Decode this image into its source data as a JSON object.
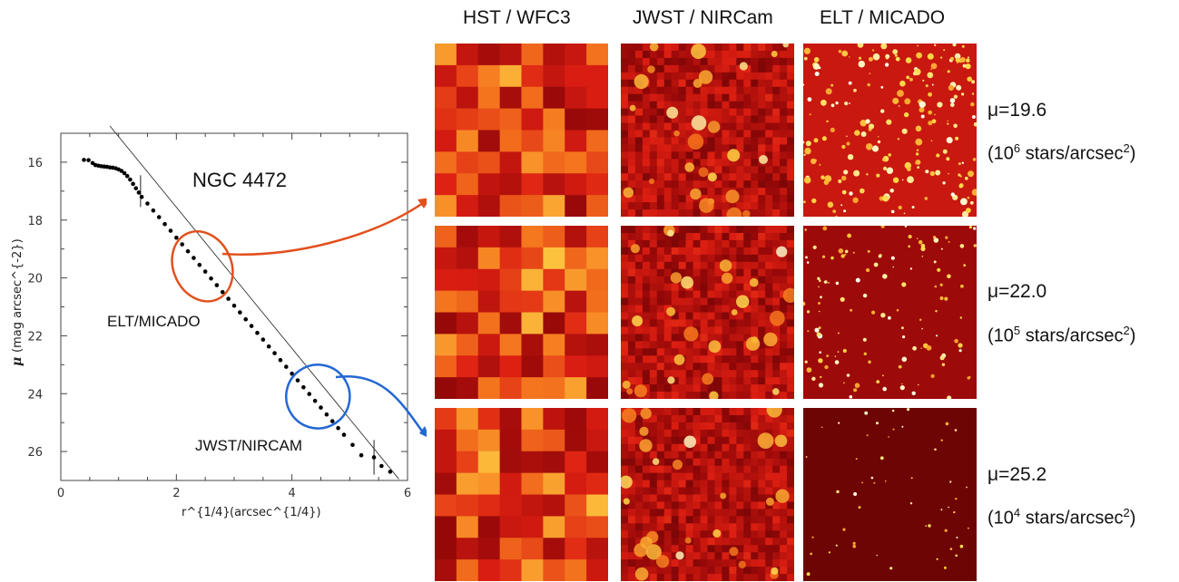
{
  "chart_data": {
    "type": "scatter",
    "title": "NGC 4472",
    "xlabel": "r^{1/4}",
    "xlabel_unit": "(arcsec^{1/4})",
    "ylabel": "μ",
    "ylabel_unit": "(mag arcsec^{-2})",
    "xlim": [
      0,
      6
    ],
    "ylim": [
      27,
      15
    ],
    "x_ticks": [
      "0",
      "2",
      "4",
      "6"
    ],
    "y_ticks": [
      "16",
      "18",
      "20",
      "22",
      "24",
      "26"
    ],
    "series": [
      {
        "points": [
          [
            0.4,
            15.92
          ],
          [
            0.48,
            15.93
          ],
          [
            0.55,
            16.03
          ],
          [
            0.6,
            16.1
          ],
          [
            0.65,
            16.12
          ],
          [
            0.7,
            16.14
          ],
          [
            0.75,
            16.15
          ],
          [
            0.8,
            16.16
          ],
          [
            0.85,
            16.18
          ],
          [
            0.9,
            16.19
          ],
          [
            0.95,
            16.21
          ],
          [
            1.0,
            16.25
          ],
          [
            1.05,
            16.3
          ],
          [
            1.1,
            16.38
          ],
          [
            1.15,
            16.48
          ],
          [
            1.2,
            16.6
          ],
          [
            1.25,
            16.75
          ],
          [
            1.3,
            16.9
          ],
          [
            1.35,
            17.05
          ],
          [
            1.4,
            17.2
          ],
          [
            1.5,
            17.43
          ],
          [
            1.6,
            17.67
          ],
          [
            1.7,
            17.9
          ],
          [
            1.8,
            18.14
          ],
          [
            1.9,
            18.37
          ],
          [
            2.0,
            18.61
          ],
          [
            2.1,
            18.84
          ],
          [
            2.2,
            19.08
          ],
          [
            2.3,
            19.31
          ],
          [
            2.4,
            19.55
          ],
          [
            2.5,
            19.78
          ],
          [
            2.6,
            20.02
          ],
          [
            2.7,
            20.25
          ],
          [
            2.8,
            20.49
          ],
          [
            2.9,
            20.72
          ],
          [
            3.0,
            20.96
          ],
          [
            3.1,
            21.19
          ],
          [
            3.2,
            21.43
          ],
          [
            3.3,
            21.66
          ],
          [
            3.4,
            21.9
          ],
          [
            3.5,
            22.13
          ],
          [
            3.6,
            22.37
          ],
          [
            3.7,
            22.6
          ],
          [
            3.8,
            22.84
          ],
          [
            3.9,
            23.07
          ],
          [
            4.0,
            23.31
          ],
          [
            4.1,
            23.54
          ],
          [
            4.2,
            23.78
          ],
          [
            4.3,
            24.01
          ],
          [
            4.4,
            24.25
          ],
          [
            4.5,
            24.48
          ],
          [
            4.6,
            24.72
          ],
          [
            4.7,
            24.95
          ],
          [
            4.8,
            25.19
          ],
          [
            4.9,
            25.42
          ],
          [
            5.05,
            25.77
          ],
          [
            5.2,
            26.13
          ],
          [
            5.42,
            26.2
          ],
          [
            5.55,
            26.5
          ],
          [
            5.7,
            26.7
          ]
        ]
      }
    ],
    "fit_line": {
      "x": [
        0.85,
        5.85
      ],
      "y": [
        14.75,
        26.95
      ]
    },
    "error_bars": [
      {
        "x": 1.38,
        "y": 17.0,
        "dy": 0.55
      },
      {
        "x": 5.42,
        "y": 26.2,
        "dy": 0.6
      }
    ],
    "ellipses": [
      {
        "label": "ELT/MICADO",
        "color": "#e2501d",
        "cx": 2.45,
        "cy": 19.6,
        "rx": 0.5,
        "ry": 1.25,
        "angle": -25
      },
      {
        "label": "JWST/NIRCAM",
        "color": "#2468d2",
        "cx": 4.45,
        "cy": 24.1,
        "rx": 0.55,
        "ry": 1.1,
        "angle": -35
      }
    ],
    "annotations": [
      "ELT/MICADO",
      "JWST/NIRCAM"
    ]
  },
  "columns": [
    "HST / WFC3",
    "JWST / NIRCam",
    "ELT / MICADO"
  ],
  "rows": [
    {
      "mu": "μ=19.6",
      "density_base": "(10",
      "density_exp": "6",
      "density_tail": " stars/arcsec",
      "density_sq": "2",
      "density_end": ")",
      "hst_seed": 11,
      "jwst_seed": 21,
      "elt_seed": 31,
      "elt_level": 1.0
    },
    {
      "mu": "μ=22.0",
      "density_base": "(10",
      "density_exp": "5",
      "density_tail": " stars/arcsec",
      "density_sq": "2",
      "density_end": ")",
      "hst_seed": 12,
      "jwst_seed": 22,
      "elt_seed": 32,
      "elt_level": 0.55
    },
    {
      "mu": "μ=25.2",
      "density_base": "(10",
      "density_exp": "4",
      "density_tail": " stars/arcsec",
      "density_sq": "2",
      "density_end": ")",
      "hst_seed": 13,
      "jwst_seed": 23,
      "elt_seed": 33,
      "elt_level": 0.12
    }
  ],
  "colors": {
    "heat_dark": "#2a0000",
    "heat_mid": "#d71a0d",
    "heat_hot": "#ffd23a",
    "heat_white": "#ffffff"
  }
}
